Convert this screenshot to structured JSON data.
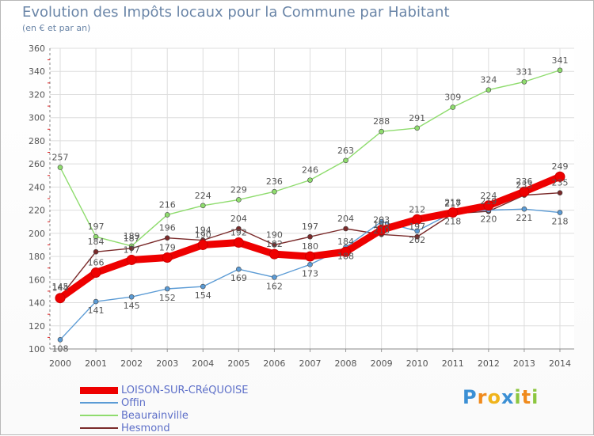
{
  "chart_data": {
    "type": "line",
    "title": "Evolution des Impôts locaux pour la Commune par Habitant",
    "subtitle": "(en € et par an)",
    "xlabel": "",
    "ylabel": "",
    "x": [
      "2000",
      "2001",
      "2002",
      "2003",
      "2004",
      "2005",
      "2006",
      "2007",
      "2008",
      "2009",
      "2010",
      "2011",
      "2012",
      "2013",
      "2014"
    ],
    "ylim": [
      100,
      360
    ],
    "yticks": [
      100,
      120,
      140,
      160,
      180,
      200,
      220,
      240,
      260,
      280,
      300,
      320,
      340,
      360
    ],
    "grid": true,
    "series": [
      {
        "name": "LOISON-SUR-CRéQUOISE",
        "color": "#ee0000",
        "values": [
          144,
          166,
          177,
          179,
          190,
          192,
          182,
          180,
          184,
          203,
          212,
          218,
          224,
          236,
          249
        ]
      },
      {
        "name": "Offin",
        "color": "#5b9bd5",
        "values": [
          108,
          141,
          145,
          152,
          154,
          169,
          162,
          173,
          188,
          210,
          202,
          218,
          220,
          221,
          218
        ]
      },
      {
        "name": "Beaurainville",
        "color": "#8fdc6e",
        "values": [
          257,
          197,
          189,
          216,
          224,
          229,
          236,
          246,
          263,
          288,
          291,
          309,
          324,
          331,
          341
        ]
      },
      {
        "name": "Hesmond",
        "color": "#7a2a2a",
        "values": [
          145,
          184,
          187,
          196,
          194,
          204,
          190,
          197,
          204,
          199,
          197,
          217,
          219,
          233,
          235
        ]
      }
    ]
  },
  "legend_labels": [
    "LOISON-SUR-CRéQUOISE",
    "Offin",
    "Beaurainville",
    "Hesmond"
  ],
  "logo": {
    "text": "Proxiti",
    "letters": [
      "P",
      "r",
      "o",
      "x",
      "i",
      "t",
      "i"
    ],
    "colors": [
      "#3b8fd4",
      "#f08a1c",
      "#f0b41c",
      "#3b8fd4",
      "#8cc63f",
      "#f08a1c",
      "#8cc63f"
    ]
  }
}
